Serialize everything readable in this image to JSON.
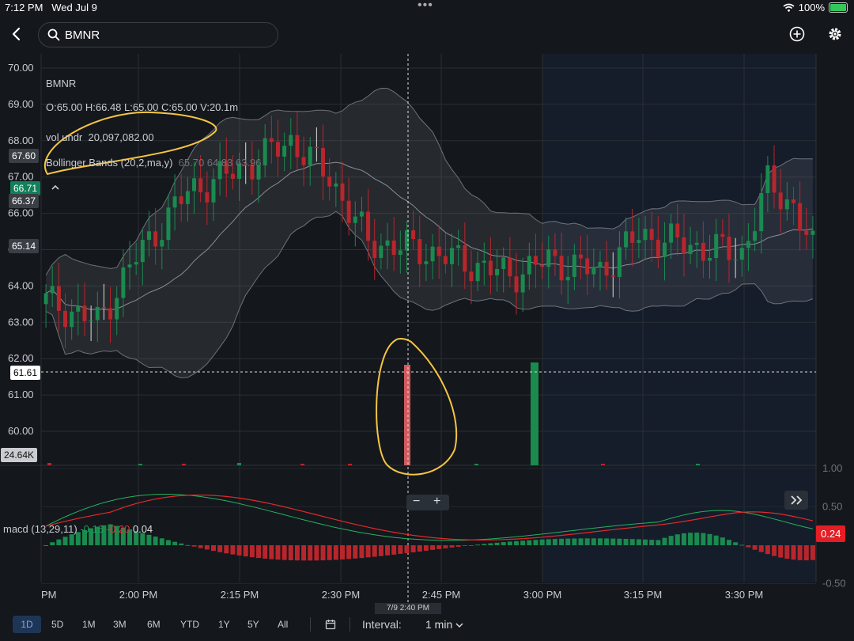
{
  "status": {
    "time": "7:12 PM",
    "date": "Wed Jul 9",
    "battery": "100%"
  },
  "search": {
    "value": "BMNR"
  },
  "chart": {
    "symbol": "BMNR",
    "ohlcv": "O:65.00  H:66.48  L:65.00  C:65.00  V:20.1m",
    "vol_label": "vol undr",
    "vol_value": "20,097,082.00",
    "bb_label": "Bollinger Bands (20,2,ma,y)",
    "bb_values": "65.70 64.83 63.96",
    "price_ticks": [
      "70.00",
      "69.00",
      "68.00",
      "67.00",
      "66.00",
      "65.00",
      "64.00",
      "63.00",
      "62.00",
      "61.00",
      "60.00"
    ],
    "price_tags": [
      {
        "label": "67.60",
        "color": "#3a3e45",
        "text": "#fff"
      },
      {
        "label": "66.71",
        "color": "#12805a",
        "text": "#fff"
      },
      {
        "label": "66.37",
        "color": "#3a3e45",
        "text": "#fff"
      },
      {
        "label": "65.14",
        "color": "#3a3e45",
        "text": "#fff"
      },
      {
        "label": "61.61",
        "color": "#ffffff",
        "text": "#000"
      }
    ],
    "volume_tag": "24.64K",
    "macd_label": "macd (13,29,11)",
    "macd_v1": "-0.16",
    "macd_v2": "-0.20",
    "macd_v3": "0.04",
    "macd_ticks": [
      "1.00",
      "0.50",
      "-0.50"
    ],
    "macd_tag": "0.24",
    "time_ticks": [
      "PM",
      "2:00 PM",
      "2:15 PM",
      "2:30 PM",
      "2:45 PM",
      "3:00 PM",
      "3:15 PM",
      "3:30 PM"
    ],
    "crosshair_time": "7/9 2:40 PM",
    "colors": {
      "up": "#1a8a4f",
      "down": "#b8262b",
      "accent": "#f5c542"
    }
  },
  "ranges": [
    "1D",
    "5D",
    "1M",
    "3M",
    "6M",
    "YTD",
    "1Y",
    "5Y",
    "All"
  ],
  "interval": {
    "label": "Interval:",
    "value": "1 min"
  }
}
